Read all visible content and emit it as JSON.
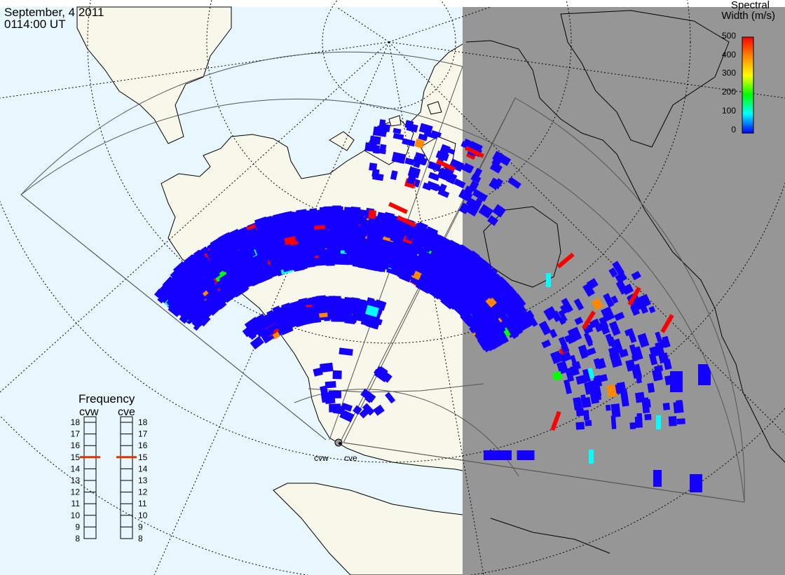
{
  "header": {
    "date": "September, 4 2011",
    "time": "0114:00 UT"
  },
  "colorbar": {
    "title_line1": "Spectral",
    "title_line2": "Width (m/s)",
    "ticks": [
      "500",
      "400",
      "300",
      "200",
      "100",
      "0"
    ],
    "colors": [
      "#ff0000",
      "#ff8800",
      "#ffff00",
      "#00ff00",
      "#00ffff",
      "#0000ff"
    ]
  },
  "frequency_panel": {
    "title": "Frequency",
    "radar_labels": [
      "cvw",
      "cve"
    ],
    "scale": [
      "18",
      "17",
      "16",
      "15",
      "14",
      "13",
      "12",
      "11",
      "10",
      "9",
      "8"
    ],
    "indicator_value_mhz": 15,
    "indicator_color": "#dd3300"
  },
  "map": {
    "site_labels": [
      "cvw",
      "cve"
    ],
    "colors": {
      "ocean": "#e8f6fd",
      "land": "#f7f7ea",
      "night_shade": "#969696",
      "coastline": "#000000",
      "grid": "#000000",
      "fov": "#555555",
      "echo_default": "#1400ff"
    }
  }
}
